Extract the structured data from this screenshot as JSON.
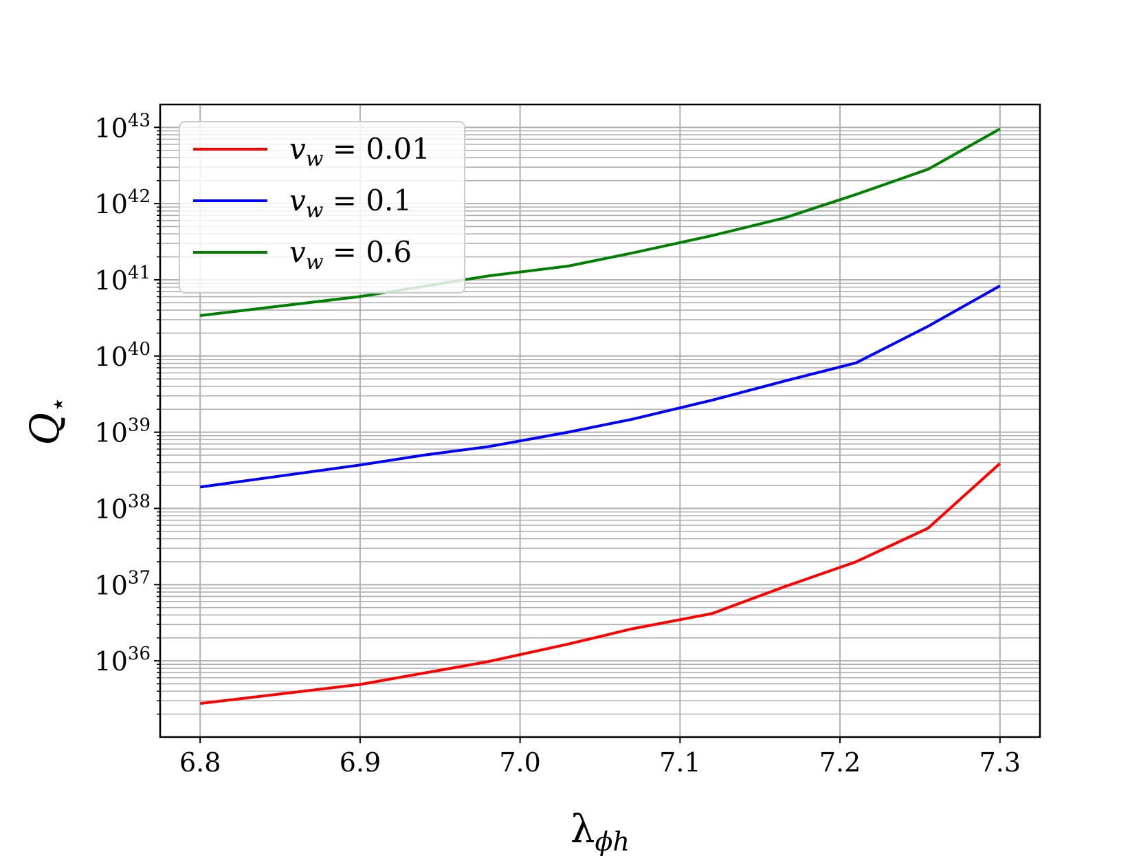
{
  "chart_data": {
    "type": "line",
    "xlabel": "λ",
    "xlabel_sub": "ϕh",
    "ylabel": "Q",
    "ylabel_sub": "⋆",
    "yscale": "log",
    "xlim": [
      6.775,
      7.325
    ],
    "ylim_exp": [
      35.0,
      43.3
    ],
    "x_ticks": [
      6.8,
      6.9,
      7.0,
      7.1,
      7.2,
      7.3
    ],
    "x_tick_labels": [
      "6.8",
      "6.9",
      "7.0",
      "7.1",
      "7.2",
      "7.3"
    ],
    "y_tick_exponents": [
      36,
      37,
      38,
      39,
      40,
      41,
      42,
      43
    ],
    "y_tick_base": "10",
    "grid": true,
    "legend_position": "top-left",
    "series": [
      {
        "name": "v_w = 0.01",
        "legend_main": "v",
        "legend_sub": "w",
        "legend_rest": " = 0.01",
        "color": "#ff0000",
        "x": [
          6.8,
          6.9,
          6.98,
          7.03,
          7.07,
          7.12,
          7.165,
          7.21,
          7.255,
          7.3
        ],
        "log10_y": [
          35.44,
          35.69,
          35.99,
          36.22,
          36.42,
          36.62,
          36.97,
          37.3,
          37.74,
          38.59
        ]
      },
      {
        "name": "v_w = 0.1",
        "legend_main": "v",
        "legend_sub": "w",
        "legend_rest": " = 0.1",
        "color": "#0000ff",
        "x": [
          6.8,
          6.9,
          6.94,
          6.98,
          7.03,
          7.07,
          7.12,
          7.165,
          7.21,
          7.255,
          7.3
        ],
        "log10_y": [
          38.28,
          38.57,
          38.7,
          38.81,
          39.0,
          39.17,
          39.42,
          39.67,
          39.91,
          40.39,
          40.92
        ]
      },
      {
        "name": "v_w = 0.6",
        "legend_main": "v",
        "legend_sub": "w",
        "legend_rest": " = 0.6",
        "color": "#008000",
        "x": [
          6.8,
          6.9,
          6.98,
          7.03,
          7.07,
          7.12,
          7.165,
          7.21,
          7.255,
          7.3
        ],
        "log10_y": [
          40.53,
          40.78,
          41.05,
          41.18,
          41.35,
          41.58,
          41.81,
          42.12,
          42.45,
          42.98
        ]
      }
    ]
  }
}
